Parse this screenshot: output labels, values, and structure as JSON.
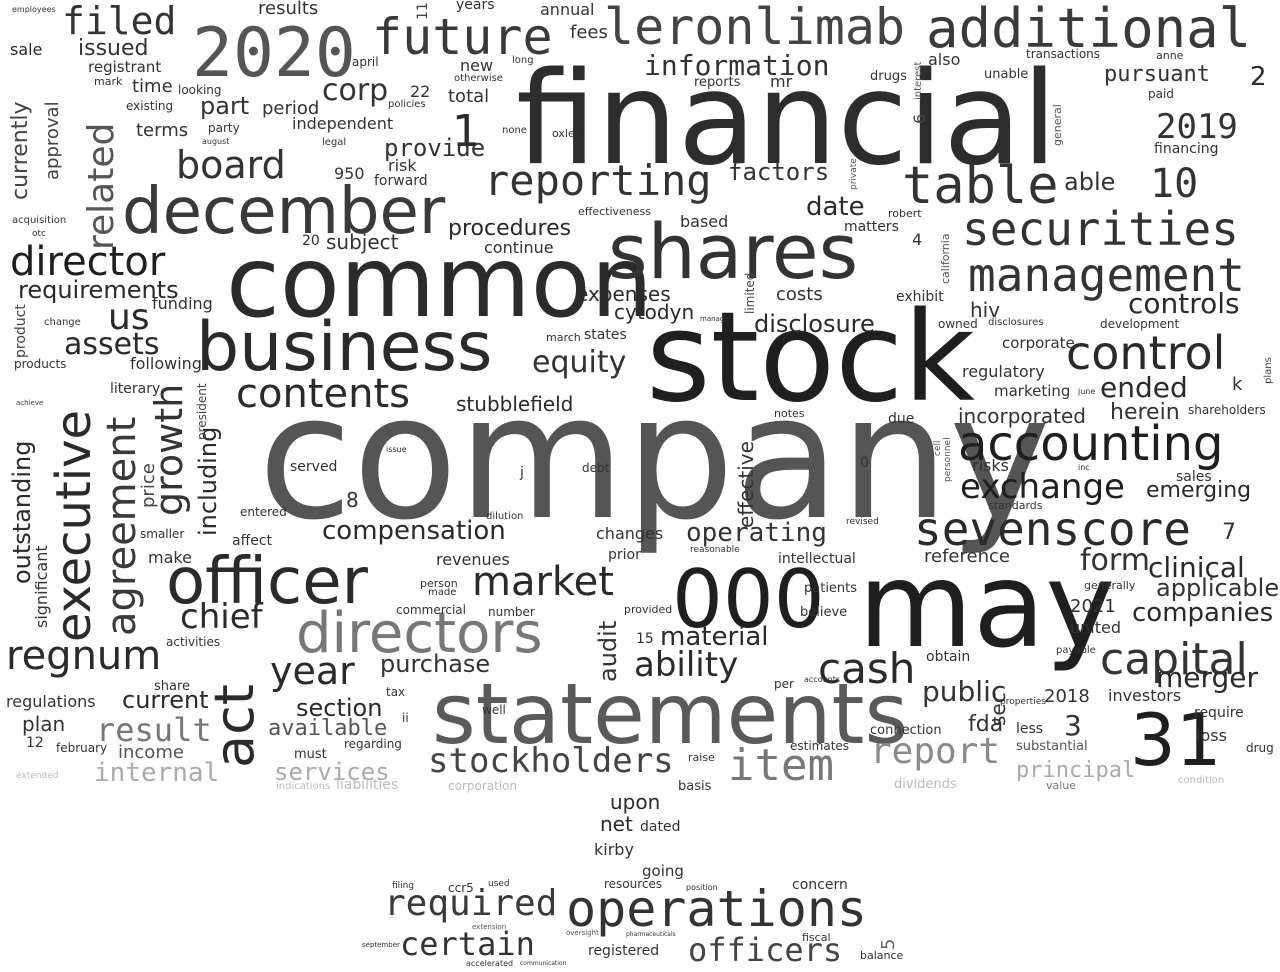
{
  "words": {
    "company": "company",
    "financial": "financial",
    "stock": "stock",
    "common": "common",
    "statements": "statements",
    "may": "may",
    "shares": "shares",
    "business": "business",
    "officer": "officer",
    "directors": "directors",
    "000": "000",
    "december": "december",
    "2020": "2020",
    "additional": "additional",
    "leronlimab": "leronlimab",
    "future": "future",
    "accounting": "accounting",
    "securities": "securities",
    "management": "management",
    "control": "control",
    "sevenscore": "sevenscore",
    "capital": "capital",
    "31": "31",
    "act": "act",
    "executive": "executive",
    "agreement": "agreement",
    "regnum": "regnum",
    "director": "director",
    "reporting": "reporting",
    "table": "table",
    "board": "board",
    "filed": "filed",
    "item": "item",
    "report": "report",
    "cash": "cash",
    "market": "market",
    "stockholders": "stockholders",
    "operations": "operations",
    "required": "required",
    "certain": "certain",
    "officers": "officers",
    "result": "result",
    "year": "year",
    "chief": "chief",
    "ability": "ability",
    "contents": "contents",
    "growth": "growth",
    "exchange": "exchange",
    "information": "information",
    "2019": "2019",
    "10": "10",
    "1": "1",
    "compensation": "compensation",
    "equity": "equity",
    "material": "material",
    "related": "related",
    "outstanding": "outstanding",
    "including": "including",
    "requirements": "requirements",
    "us": "us",
    "assets": "assets",
    "clinical": "clinical",
    "companies": "companies",
    "merger": "merger",
    "form": "form",
    "applicable": "applicable",
    "public": "public",
    "controls": "controls",
    "disclosure": "disclosure",
    "operating": "operating",
    "ended": "ended",
    "emerging": "emerging",
    "herein": "herein",
    "incorporated": "incorporated",
    "internal": "internal",
    "services": "services",
    "principal": "principal",
    "purchase": "purchase",
    "current": "current",
    "section": "section",
    "available": "available",
    "corp": "corp",
    "pursuant": "pursuant",
    "provide": "provide",
    "factors": "factors",
    "date": "date",
    "able": "able",
    "issued": "issued",
    "part": "part",
    "procedures": "procedures",
    "stubblefield": "stubblefield",
    "expenses": "expenses",
    "cytodyn": "cytodyn",
    "costs": "costs",
    "fees": "fees",
    "annual": "annual",
    "total": "total",
    "new": "new",
    "time": "time",
    "terms": "terms",
    "period": "period",
    "independent": "independent",
    "subject": "subject",
    "funding": "funding",
    "following": "following",
    "products": "products",
    "product": "product",
    "literary": "literary",
    "served": "served",
    "entered": "entered",
    "affect": "affect",
    "make": "make",
    "revenues": "revenues",
    "changes": "changes",
    "prior": "prior",
    "intellectual": "intellectual",
    "patients": "patients",
    "believe": "believe",
    "2021": "2021",
    "united": "united",
    "obtain": "obtain",
    "fda": "fda",
    "less": "less",
    "3": "3",
    "2018": "2018",
    "investors": "investors",
    "require": "require",
    "loss": "loss",
    "substantial": "substantial",
    "connection": "connection",
    "estimates": "estimates",
    "upon": "upon",
    "net": "net",
    "dated": "dated",
    "kirby": "kirby",
    "going": "going",
    "concern": "concern",
    "resources": "resources",
    "registered": "registered",
    "regulations": "regulations",
    "plan": "plan",
    "income": "income",
    "february": "february",
    "12": "12",
    "regarding": "regarding",
    "must": "must",
    "sale": "sale",
    "registrant": "registrant",
    "currently": "currently",
    "approval": "approval",
    "risks": "risks",
    "reference": "reference",
    "regulatory": "regulatory",
    "marketing": "marketing",
    "corporate": "corporate",
    "hiv": "hiv",
    "exhibit": "exhibit",
    "owned": "owned",
    "development": "development",
    "shareholders": "shareholders",
    "k": "k",
    "2": "2",
    "financing": "financing",
    "also": "also",
    "unable": "unable",
    "transactions": "transactions",
    "based": "based",
    "matters": "matters",
    "effectiveness": "effectiveness",
    "continue": "continue",
    "audit": "audit",
    "effective": "effective",
    "15": "15",
    "8": "8",
    "significant": "significant",
    "price": "price",
    "president": "president",
    "sec": "sec",
    "7": "7",
    "4": "4",
    "6": "6",
    "22": "22",
    "950": "950",
    "forward": "forward",
    "risk": "risk",
    "20": "20",
    "results": "results",
    "years": "years",
    "mr": "mr",
    "reports": "reports",
    "drugs": "drugs",
    "robert": "robert",
    "attendance": "march",
    "states": "states",
    "due": "due",
    "notes": "notes",
    "mark": "mark",
    "looking": "looking",
    "existing": "existing",
    "party": "party",
    "legal": "legal",
    "oxley": "oxley",
    "standards": "standards",
    "sales": "sales",
    "ii": "ii",
    "tax": "tax",
    "well": "well",
    "generally": "generally",
    "activities": "activities",
    "share": "share",
    "smaller": "smaller",
    "commercial": "commercial",
    "number": "number",
    "provided": "provided",
    "person": "person",
    "made": "made",
    "basis": "basis",
    "raise": "raise",
    "payable": "payable",
    "properties": "properties",
    "liabilities": "liabilities",
    "corporation": "corporation",
    "indications": "indications",
    "dividends": "dividends",
    "value": "value",
    "extended": "extended",
    "condition": "condition",
    "revised": "revised",
    "accounts": "accounts",
    "per": "per",
    "reasonable": "reasonable",
    "limited": "limited",
    "drug": "drug",
    "employees": "employees",
    "filing": "filing",
    "ccr5": "ccr5",
    "fiscal": "fiscal",
    "balance": "balance",
    "5": "5",
    "issue": "issue",
    "dilution": "dilution",
    "debt": "debt",
    "0": "0",
    "j": "j",
    "acquisition": "acquisition",
    "otc": "otc",
    "change": "change",
    "achieve": "achieve",
    "used": "used",
    "extension": "extension",
    "accelerated": "accelerated",
    "communication": "communication",
    "pharmaceuticals": "pharmaceuticals",
    "oversight": "oversight",
    "september": "september",
    "position": "position",
    "august": "august",
    "april": "april",
    "policies": "policies",
    "long": "long",
    "otherwise": "otherwise",
    "none": "none",
    "june": "june",
    "disclosures": "disclosures",
    "private": "private",
    "general": "general",
    "paid": "paid",
    "anne": "anne",
    "inc": "inc",
    "cell": "cell",
    "california": "california",
    "personnel": "personnel",
    "plans": "plans",
    "manage": "manage",
    "interest": "interest",
    "11": "11"
  },
  "colors": {
    "dark": "#1f1f1f",
    "mid": "#3c3c3c",
    "gray": "#555555",
    "light": "#8a8a8a",
    "faint": "#b5b5b5"
  }
}
